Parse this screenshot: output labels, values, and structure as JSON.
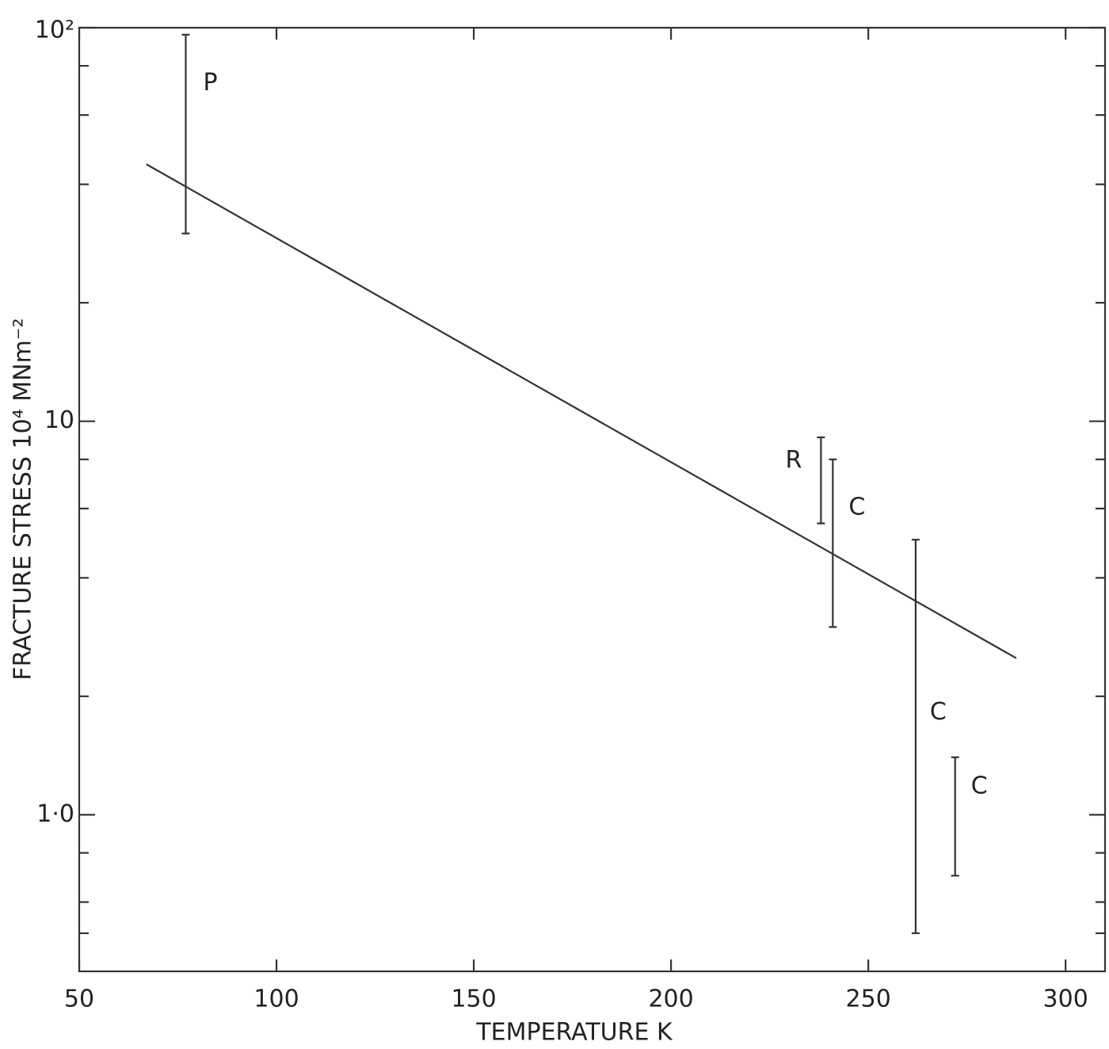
{
  "chart_data": {
    "type": "errorbar",
    "x_label": "TEMPERATURE  K",
    "y_label": "FRACTURE  STRESS  10⁴ MNm⁻²",
    "xlim": [
      50,
      310
    ],
    "xticks": [
      50,
      100,
      150,
      200,
      250,
      300
    ],
    "ylim": [
      0.4,
      100
    ],
    "log_y": true,
    "yticks": [
      {
        "value": 1,
        "label": "1·0"
      },
      10,
      {
        "value": 100,
        "label": "10²"
      }
    ],
    "yminor_ticks": [
      0.5,
      0.6,
      0.8,
      2,
      4,
      6,
      8,
      20,
      40,
      60,
      80
    ],
    "color": "#333333",
    "error_bars": [
      {
        "label": "P",
        "x": 77,
        "low": 30,
        "high": 96
      },
      {
        "label": "R",
        "x": 238,
        "low": 5.5,
        "high": 9.1
      },
      {
        "label": "C",
        "x": 241,
        "low": 3.0,
        "high": 8.0
      },
      {
        "label": "C",
        "x": 262,
        "low": 0.5,
        "high": 5.0
      },
      {
        "label": "C",
        "x": 272,
        "low": 0.7,
        "high": 1.4
      }
    ],
    "fit_line": {
      "x": [
        67,
        287.5
      ],
      "y": [
        45,
        2.5
      ]
    }
  }
}
